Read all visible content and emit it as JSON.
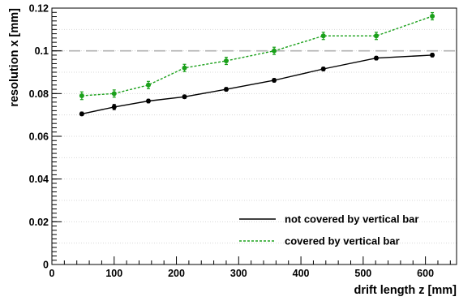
{
  "chart_data": {
    "type": "line",
    "title": "",
    "xlabel": "drift length z [mm]",
    "ylabel": "resolution x [mm]",
    "xlim": [
      0,
      650
    ],
    "ylim": [
      0,
      0.12
    ],
    "x_ticks": [
      "0",
      "100",
      "200",
      "300",
      "400",
      "500",
      "600"
    ],
    "y_ticks": [
      "0",
      "0.02",
      "0.04",
      "0.06",
      "0.08",
      "0.1",
      "0.12"
    ],
    "grid": true,
    "reference_line": {
      "y": 0.1,
      "style": "dashed",
      "color": "#b0b0b0"
    },
    "legend": {
      "position": "bottom-right"
    },
    "series": [
      {
        "name": "not covered by vertical bar",
        "color": "#000000",
        "line_style": "solid",
        "x": [
          48,
          100,
          155,
          213,
          280,
          357,
          436,
          521,
          611
        ],
        "y": [
          0.0705,
          0.0737,
          0.0765,
          0.0785,
          0.082,
          0.0862,
          0.0915,
          0.0966,
          0.098
        ],
        "err": [
          0.0008,
          0.0012,
          0.0008,
          0.0008,
          0.0008,
          0.0008,
          0.0008,
          0.0008,
          0.0008
        ]
      },
      {
        "name": "covered by vertical bar",
        "color": "#1aa01a",
        "line_style": "dashed",
        "x": [
          48,
          100,
          155,
          213,
          280,
          357,
          436,
          521,
          611
        ],
        "y": [
          0.079,
          0.08,
          0.084,
          0.092,
          0.0953,
          0.1,
          0.107,
          0.107,
          0.1162
        ],
        "err": [
          0.0018,
          0.0017,
          0.0017,
          0.0017,
          0.0017,
          0.0017,
          0.0017,
          0.0017,
          0.0017
        ]
      }
    ]
  }
}
